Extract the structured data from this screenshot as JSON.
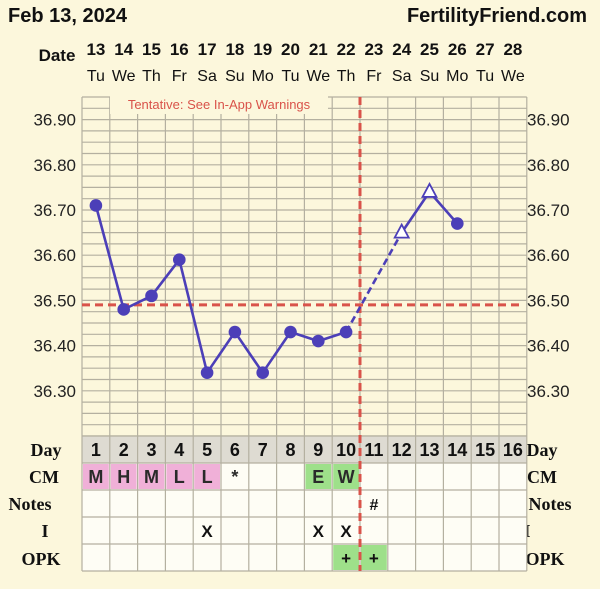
{
  "header": {
    "date_title": "Feb 13, 2024",
    "brand": "FertilityFriend.com"
  },
  "warning": "Tentative: See In-App Warnings",
  "labels": {
    "date": "Date",
    "day": "Day",
    "cm": "CM",
    "notes": "Notes",
    "intercourse": "I",
    "opk": "OPK"
  },
  "columns": [
    {
      "date": "13",
      "weekday": "Tu",
      "day": "1",
      "cm": "M",
      "notes": "",
      "i": "",
      "opk": ""
    },
    {
      "date": "14",
      "weekday": "We",
      "day": "2",
      "cm": "H",
      "notes": "",
      "i": "",
      "opk": ""
    },
    {
      "date": "15",
      "weekday": "Th",
      "day": "3",
      "cm": "M",
      "notes": "",
      "i": "",
      "opk": ""
    },
    {
      "date": "16",
      "weekday": "Fr",
      "day": "4",
      "cm": "L",
      "notes": "",
      "i": "",
      "opk": ""
    },
    {
      "date": "17",
      "weekday": "Sa",
      "day": "5",
      "cm": "L",
      "notes": "",
      "i": "X",
      "opk": ""
    },
    {
      "date": "18",
      "weekday": "Su",
      "day": "6",
      "cm": "*",
      "notes": "",
      "i": "",
      "opk": ""
    },
    {
      "date": "19",
      "weekday": "Mo",
      "day": "7",
      "cm": "",
      "notes": "",
      "i": "",
      "opk": ""
    },
    {
      "date": "20",
      "weekday": "Tu",
      "day": "8",
      "cm": "",
      "notes": "",
      "i": "",
      "opk": ""
    },
    {
      "date": "21",
      "weekday": "We",
      "day": "9",
      "cm": "E",
      "notes": "",
      "i": "X",
      "opk": ""
    },
    {
      "date": "22",
      "weekday": "Th",
      "day": "10",
      "cm": "W",
      "notes": "",
      "i": "X",
      "opk": "+"
    },
    {
      "date": "23",
      "weekday": "Fr",
      "day": "11",
      "cm": "",
      "notes": "#",
      "i": "",
      "opk": "+"
    },
    {
      "date": "24",
      "weekday": "Sa",
      "day": "12",
      "cm": "",
      "notes": "",
      "i": "",
      "opk": ""
    },
    {
      "date": "25",
      "weekday": "Su",
      "day": "13",
      "cm": "",
      "notes": "",
      "i": "",
      "opk": ""
    },
    {
      "date": "26",
      "weekday": "Mo",
      "day": "14",
      "cm": "",
      "notes": "",
      "i": "",
      "opk": ""
    },
    {
      "date": "27",
      "weekday": "Tu",
      "day": "15",
      "cm": "",
      "notes": "",
      "i": "",
      "opk": ""
    },
    {
      "date": "28",
      "weekday": "We",
      "day": "16",
      "cm": "",
      "notes": "",
      "i": "",
      "opk": ""
    }
  ],
  "colors": {
    "background": "#fcf7dc",
    "grid": "#b4b0a0",
    "line": "#4c3fb8",
    "coverline": "#d9534a",
    "cm_fertile_pink": "#f0b0d8",
    "cm_fertile_green": "#9ee08a",
    "opk_positive": "#9ee08a",
    "label_gray": "#dedbd2"
  },
  "chart_data": {
    "type": "line",
    "x_axis": "cycle day",
    "y_ticks": [
      "36.90",
      "36.80",
      "36.70",
      "36.60",
      "36.50",
      "36.40",
      "36.30"
    ],
    "ylim": [
      36.2,
      36.95
    ],
    "coverline": 36.49,
    "ovulation_day": 10,
    "series": [
      {
        "points": [
          {
            "day": 1,
            "temp": 36.71,
            "marker": "circle"
          },
          {
            "day": 2,
            "temp": 36.48,
            "marker": "circle"
          },
          {
            "day": 3,
            "temp": 36.51,
            "marker": "circle"
          },
          {
            "day": 4,
            "temp": 36.59,
            "marker": "circle"
          },
          {
            "day": 5,
            "temp": 36.34,
            "marker": "circle"
          },
          {
            "day": 6,
            "temp": 36.43,
            "marker": "circle"
          },
          {
            "day": 7,
            "temp": 36.34,
            "marker": "circle"
          },
          {
            "day": 8,
            "temp": 36.43,
            "marker": "circle"
          },
          {
            "day": 9,
            "temp": 36.41,
            "marker": "circle"
          },
          {
            "day": 10,
            "temp": 36.43,
            "marker": "circle"
          },
          {
            "day": 12,
            "temp": 36.65,
            "marker": "triangle"
          },
          {
            "day": 13,
            "temp": 36.74,
            "marker": "triangle"
          },
          {
            "day": 14,
            "temp": 36.67,
            "marker": "circle"
          }
        ],
        "dashed_segments": [
          [
            10,
            12
          ]
        ],
        "solid_segments": [
          [
            1,
            10
          ],
          [
            12,
            14
          ]
        ]
      }
    ]
  }
}
